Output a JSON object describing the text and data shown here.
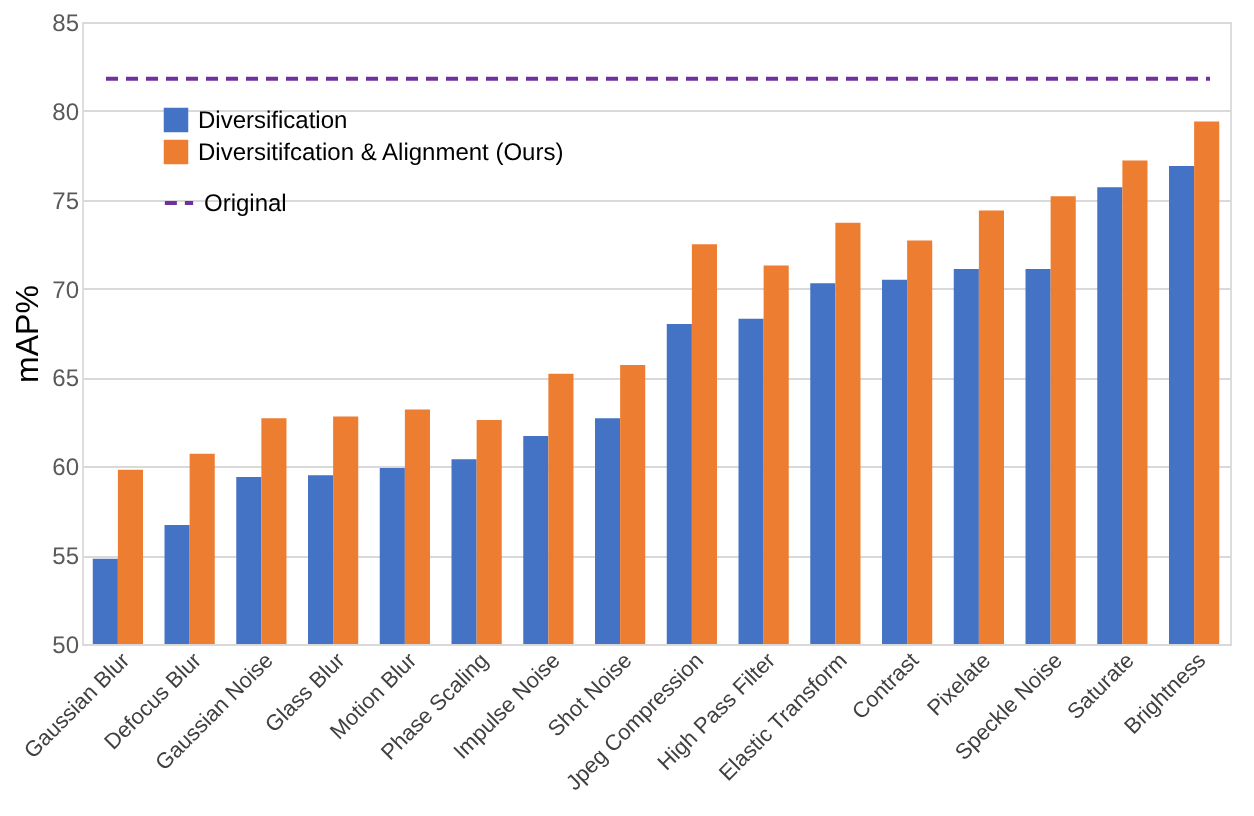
{
  "chart_data": {
    "type": "bar",
    "ylabel": "mAP%",
    "categories": [
      "Gaussian Blur",
      "Defocus Blur",
      "Gaussian Noise",
      "Glass Blur",
      "Motion Blur",
      "Phase Scaling",
      "Impulse Noise",
      "Shot Noise",
      "Jpeg Compression",
      "High Pass Filter",
      "Elastic Transform",
      "Contrast",
      "Pixelate",
      "Speckle Noise",
      "Saturate",
      "Brightness"
    ],
    "series": [
      {
        "name": "Diversification",
        "color": "#4472c4",
        "values": [
          54.8,
          56.7,
          59.4,
          59.5,
          59.9,
          60.4,
          61.7,
          62.7,
          68.0,
          68.3,
          70.3,
          70.5,
          71.1,
          71.1,
          75.7,
          76.9
        ]
      },
      {
        "name": "Diversitifcation & Alignment (Ours)",
        "color": "#ed7d31",
        "values": [
          59.8,
          60.7,
          62.7,
          62.8,
          63.2,
          62.6,
          65.2,
          65.7,
          72.5,
          71.3,
          73.7,
          72.7,
          74.4,
          75.2,
          77.2,
          79.4
        ]
      }
    ],
    "ref_lines": [
      {
        "axis": "y",
        "value": 81.8,
        "label": "Original",
        "color": "#7030a0",
        "line_style": "dashed"
      }
    ],
    "ylim": [
      50,
      85
    ],
    "yticks": [
      50,
      55,
      60,
      65,
      70,
      75,
      80,
      85
    ],
    "grid": "y",
    "legend": "top left"
  }
}
